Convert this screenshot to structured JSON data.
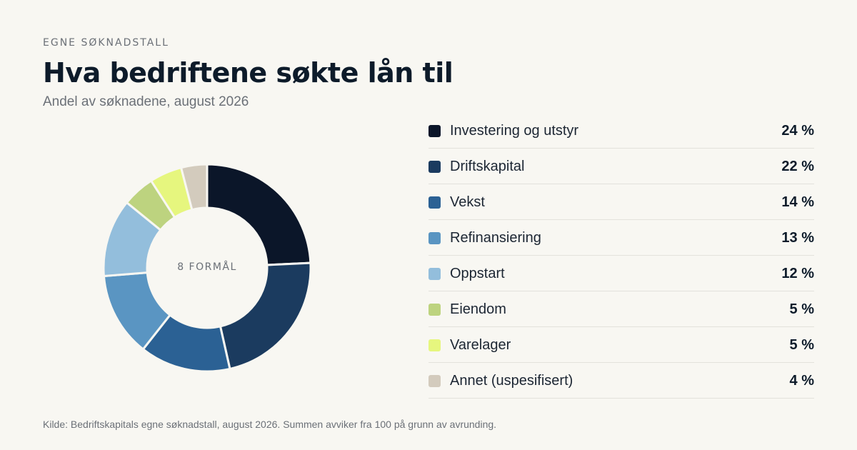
{
  "header": {
    "eyebrow": "EGNE SØKNADSTALL",
    "title": "Hva bedriftene søkte lån til",
    "subtitle": "Andel av søknadene, august 2026"
  },
  "chart_data": {
    "type": "pie",
    "title": "Hva bedriftene søkte lån til",
    "subtitle": "Andel av søknadene, august 2026",
    "center_label": "8 FORMÅL",
    "unit": "%",
    "legend_position": "right",
    "slices": [
      {
        "label": "Investering og utstyr",
        "value": 24,
        "display": "24 %",
        "color": "#0b1629"
      },
      {
        "label": "Driftskapital",
        "value": 22,
        "display": "22 %",
        "color": "#1b3b5f"
      },
      {
        "label": "Vekst",
        "value": 14,
        "display": "14 %",
        "color": "#2b6194"
      },
      {
        "label": "Refinansiering",
        "value": 13,
        "display": "13 %",
        "color": "#5a95c2"
      },
      {
        "label": "Oppstart",
        "value": 12,
        "display": "12 %",
        "color": "#93bedc"
      },
      {
        "label": "Eiendom",
        "value": 5,
        "display": "5 %",
        "color": "#bdd37f"
      },
      {
        "label": "Varelager",
        "value": 5,
        "display": "5 %",
        "color": "#e6f67e"
      },
      {
        "label": "Annet (uspesifisert)",
        "value": 4,
        "display": "4 %",
        "color": "#d3cbbd"
      }
    ]
  },
  "footer": {
    "source": "Kilde: Bedriftskapitals egne søknadstall, august 2026. Summen avviker fra 100 på grunn av avrunding."
  }
}
